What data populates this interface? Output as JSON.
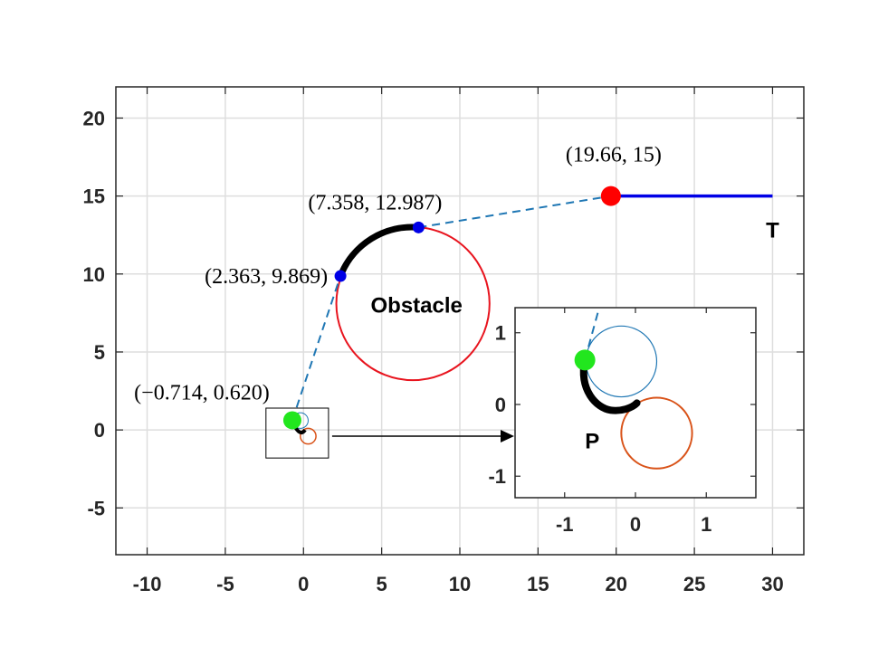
{
  "chart_data": {
    "type": "line",
    "main": {
      "xlim": [
        -12,
        32
      ],
      "ylim": [
        -8,
        22
      ],
      "xticks": [
        -10,
        -5,
        0,
        5,
        10,
        15,
        20,
        25,
        30
      ],
      "yticks": [
        -5,
        0,
        5,
        10,
        15,
        20
      ],
      "grid": true,
      "obstacle": {
        "label": "Obstacle",
        "center": [
          7.0,
          8.1
        ],
        "radius": 4.9,
        "color": "#e8141e"
      },
      "arc_points": [
        {
          "label": "(2.363, 9.869)",
          "x": 2.363,
          "y": 9.869
        },
        {
          "label": "(7.358, 12.987)",
          "x": 7.358,
          "y": 12.987
        }
      ],
      "start_point": {
        "label": "(−0.714, 0.620)",
        "x": -0.714,
        "y": 0.62,
        "color": "#22e61e"
      },
      "goal_point": {
        "label": "(19.66, 15)",
        "x": 19.66,
        "y": 15,
        "color": "#ff0000"
      },
      "target": {
        "label": "T",
        "x_end": 30,
        "y": 15,
        "color": "#0000e6"
      },
      "tangent_color": "#1f77b4",
      "zoom_box": {
        "x": [
          -2.4,
          1.6
        ],
        "y": [
          -1.8,
          1.4
        ]
      }
    },
    "inset": {
      "xlim": [
        -1.7,
        1.7
      ],
      "ylim": [
        -1.3,
        1.35
      ],
      "xticks": [
        -1,
        0,
        1
      ],
      "yticks": [
        -1,
        0,
        1
      ],
      "point_label": "P",
      "small_circle_blue": {
        "center": [
          -0.2,
          0.6
        ],
        "radius": 0.5,
        "color": "#1f77b4"
      },
      "small_circle_orange": {
        "center": [
          0.3,
          -0.4
        ],
        "radius": 0.5,
        "color": "#d95319"
      }
    }
  }
}
